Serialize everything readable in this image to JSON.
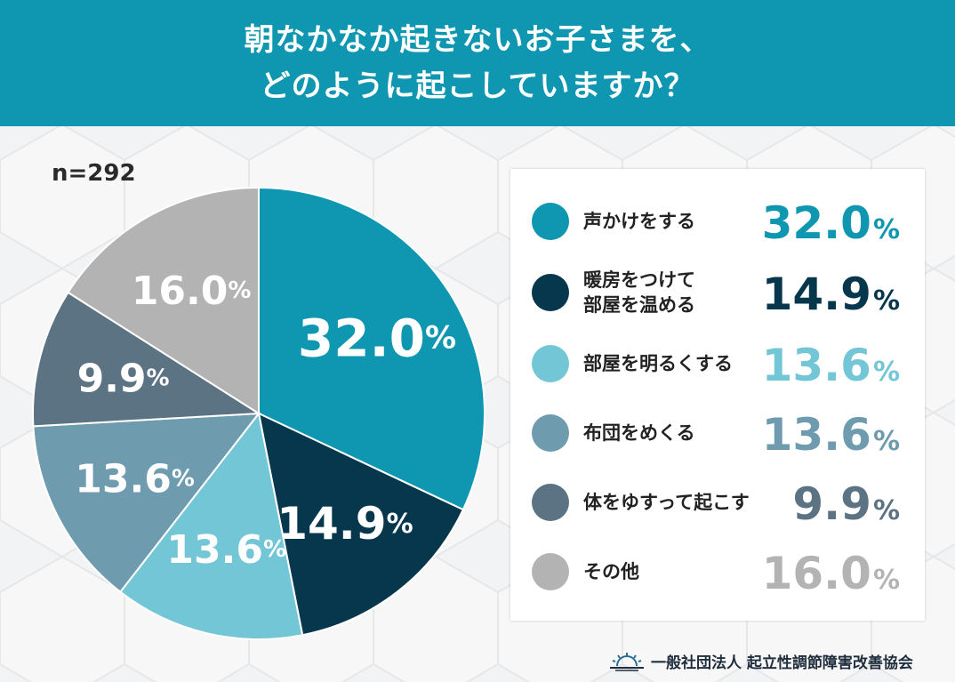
{
  "header": {
    "title_line1": "朝なかなか起きないお子さまを、",
    "title_line2": "どのように起こしていますか？"
  },
  "sample_size": "n=292",
  "percent_symbol": "%",
  "colors": {
    "header": "#0f96b0",
    "slice1": "#0f96b0",
    "slice2": "#06374d",
    "slice3": "#73c6d5",
    "slice4": "#6f9bae",
    "slice5": "#5c7383",
    "slice6": "#b3b3b3"
  },
  "chart_data": {
    "type": "pie",
    "categories": [
      "声かけをする",
      "暖房をつけて部屋を温める",
      "部屋を明るくする",
      "布団をめくる",
      "体をゆすって起こす",
      "その他"
    ],
    "values": [
      32.0,
      14.9,
      13.6,
      13.6,
      9.9,
      16.0
    ],
    "value_labels": [
      "32.0",
      "14.9",
      "13.6",
      "13.6",
      "9.9",
      "16.0"
    ],
    "unit": "%",
    "legend": "right"
  },
  "legend": {
    "items": [
      {
        "label_line1": "声かけをする",
        "label_line2": "",
        "value": "32.0"
      },
      {
        "label_line1": "暖房をつけて",
        "label_line2": "部屋を温める",
        "value": "14.9"
      },
      {
        "label_line1": "部屋を明るくする",
        "label_line2": "",
        "value": "13.6"
      },
      {
        "label_line1": "布団をめくる",
        "label_line2": "",
        "value": "13.6"
      },
      {
        "label_line1": "体をゆすって起こす",
        "label_line2": "",
        "value": "9.9"
      },
      {
        "label_line1": "その他",
        "label_line2": "",
        "value": "16.0"
      }
    ]
  },
  "footer": {
    "organization": "一般社団法人 起立性調節障害改善協会",
    "logo_icon": "sunrise-icon"
  }
}
